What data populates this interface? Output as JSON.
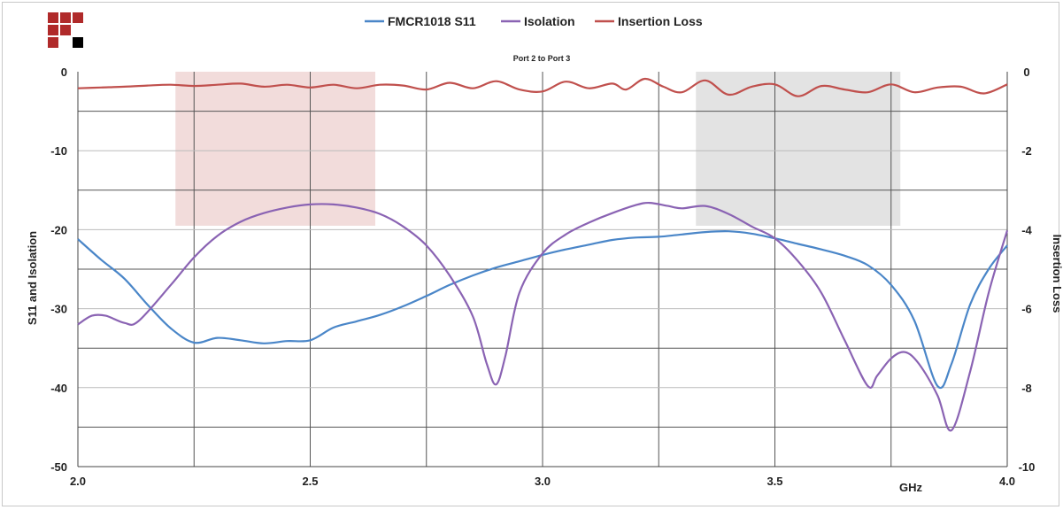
{
  "chart_data": {
    "type": "line",
    "title": "Port 2 to Port 3",
    "xlabel": "GHz",
    "ylabel": "S11 and Isolation",
    "y2label": "Insertion Loss",
    "xlim": [
      2.0,
      4.0
    ],
    "ylim": [
      -50,
      0
    ],
    "y2lim": [
      -10,
      0
    ],
    "x_ticks": [
      "2.0",
      "2.5",
      "3.0",
      "3.5",
      "4.0"
    ],
    "y_ticks": [
      "0",
      "-10",
      "-20",
      "-30",
      "-40",
      "-50"
    ],
    "y2_ticks": [
      "0",
      "-2",
      "-4",
      "-6",
      "-8",
      "-10"
    ],
    "grid": true,
    "legend_position": "top",
    "shaded_bands": [
      {
        "x_start": 2.21,
        "x_end": 2.64,
        "y_start": -19.5,
        "y_end": 0,
        "color": "#f2dcdb"
      },
      {
        "x_start": 3.33,
        "x_end": 3.77,
        "y_start": -19.5,
        "y_end": 0,
        "color": "#e3e3e3"
      }
    ],
    "series": [
      {
        "name": "FMCR1018 S11",
        "axis": "left",
        "color": "#4a86c8",
        "points": [
          [
            2.0,
            -21.2
          ],
          [
            2.05,
            -23.8
          ],
          [
            2.1,
            -26.2
          ],
          [
            2.15,
            -29.5
          ],
          [
            2.2,
            -32.5
          ],
          [
            2.25,
            -34.3
          ],
          [
            2.3,
            -33.7
          ],
          [
            2.35,
            -34.0
          ],
          [
            2.4,
            -34.4
          ],
          [
            2.45,
            -34.1
          ],
          [
            2.5,
            -34.0
          ],
          [
            2.55,
            -32.4
          ],
          [
            2.6,
            -31.6
          ],
          [
            2.65,
            -30.8
          ],
          [
            2.7,
            -29.7
          ],
          [
            2.75,
            -28.4
          ],
          [
            2.8,
            -27.0
          ],
          [
            2.85,
            -25.8
          ],
          [
            2.9,
            -24.8
          ],
          [
            2.95,
            -24.0
          ],
          [
            3.0,
            -23.2
          ],
          [
            3.05,
            -22.5
          ],
          [
            3.1,
            -21.9
          ],
          [
            3.15,
            -21.3
          ],
          [
            3.2,
            -21.0
          ],
          [
            3.25,
            -20.9
          ],
          [
            3.3,
            -20.6
          ],
          [
            3.35,
            -20.3
          ],
          [
            3.4,
            -20.2
          ],
          [
            3.45,
            -20.5
          ],
          [
            3.5,
            -21.1
          ],
          [
            3.55,
            -21.8
          ],
          [
            3.6,
            -22.5
          ],
          [
            3.65,
            -23.3
          ],
          [
            3.7,
            -24.5
          ],
          [
            3.75,
            -27.0
          ],
          [
            3.8,
            -31.5
          ],
          [
            3.85,
            -39.8
          ],
          [
            3.88,
            -37.0
          ],
          [
            3.92,
            -29.5
          ],
          [
            3.96,
            -25.0
          ],
          [
            4.0,
            -22.0
          ]
        ]
      },
      {
        "name": "Isolation",
        "axis": "left",
        "color": "#8a63b3",
        "points": [
          [
            2.0,
            -32.0
          ],
          [
            2.03,
            -30.9
          ],
          [
            2.06,
            -30.9
          ],
          [
            2.1,
            -31.8
          ],
          [
            2.13,
            -31.6
          ],
          [
            2.2,
            -27.0
          ],
          [
            2.25,
            -23.5
          ],
          [
            2.3,
            -20.8
          ],
          [
            2.35,
            -19.0
          ],
          [
            2.4,
            -17.9
          ],
          [
            2.45,
            -17.2
          ],
          [
            2.5,
            -16.8
          ],
          [
            2.55,
            -16.8
          ],
          [
            2.6,
            -17.2
          ],
          [
            2.65,
            -18.0
          ],
          [
            2.7,
            -19.6
          ],
          [
            2.75,
            -22.0
          ],
          [
            2.8,
            -25.8
          ],
          [
            2.85,
            -31.0
          ],
          [
            2.88,
            -37.0
          ],
          [
            2.9,
            -39.6
          ],
          [
            2.92,
            -36.0
          ],
          [
            2.95,
            -28.0
          ],
          [
            3.0,
            -23.0
          ],
          [
            3.05,
            -20.6
          ],
          [
            3.1,
            -19.1
          ],
          [
            3.15,
            -17.9
          ],
          [
            3.2,
            -16.9
          ],
          [
            3.23,
            -16.6
          ],
          [
            3.27,
            -17.0
          ],
          [
            3.3,
            -17.3
          ],
          [
            3.35,
            -17.0
          ],
          [
            3.4,
            -18.0
          ],
          [
            3.45,
            -19.6
          ],
          [
            3.5,
            -21.1
          ],
          [
            3.55,
            -24.0
          ],
          [
            3.6,
            -28.0
          ],
          [
            3.65,
            -34.0
          ],
          [
            3.7,
            -39.8
          ],
          [
            3.72,
            -38.5
          ],
          [
            3.75,
            -36.3
          ],
          [
            3.78,
            -35.5
          ],
          [
            3.81,
            -37.0
          ],
          [
            3.85,
            -41.0
          ],
          [
            3.88,
            -45.4
          ],
          [
            3.92,
            -38.0
          ],
          [
            3.96,
            -28.0
          ],
          [
            4.0,
            -20.1
          ]
        ]
      },
      {
        "name": "Insertion Loss",
        "axis": "right",
        "color": "#c0504d",
        "points": [
          [
            2.0,
            -0.42
          ],
          [
            2.05,
            -0.4
          ],
          [
            2.1,
            -0.38
          ],
          [
            2.15,
            -0.35
          ],
          [
            2.2,
            -0.33
          ],
          [
            2.25,
            -0.36
          ],
          [
            2.3,
            -0.33
          ],
          [
            2.35,
            -0.3
          ],
          [
            2.4,
            -0.38
          ],
          [
            2.45,
            -0.33
          ],
          [
            2.5,
            -0.4
          ],
          [
            2.55,
            -0.33
          ],
          [
            2.6,
            -0.42
          ],
          [
            2.65,
            -0.33
          ],
          [
            2.7,
            -0.35
          ],
          [
            2.75,
            -0.45
          ],
          [
            2.8,
            -0.28
          ],
          [
            2.85,
            -0.42
          ],
          [
            2.9,
            -0.24
          ],
          [
            2.95,
            -0.45
          ],
          [
            3.0,
            -0.5
          ],
          [
            3.05,
            -0.25
          ],
          [
            3.1,
            -0.42
          ],
          [
            3.15,
            -0.3
          ],
          [
            3.18,
            -0.45
          ],
          [
            3.22,
            -0.18
          ],
          [
            3.26,
            -0.38
          ],
          [
            3.3,
            -0.52
          ],
          [
            3.35,
            -0.22
          ],
          [
            3.4,
            -0.58
          ],
          [
            3.45,
            -0.38
          ],
          [
            3.5,
            -0.32
          ],
          [
            3.55,
            -0.62
          ],
          [
            3.6,
            -0.36
          ],
          [
            3.65,
            -0.45
          ],
          [
            3.7,
            -0.52
          ],
          [
            3.75,
            -0.32
          ],
          [
            3.8,
            -0.52
          ],
          [
            3.85,
            -0.4
          ],
          [
            3.9,
            -0.38
          ],
          [
            3.95,
            -0.55
          ],
          [
            4.0,
            -0.32
          ]
        ]
      }
    ]
  },
  "logo": {
    "cells": [
      "#b02a2a",
      "#b02a2a",
      "#b02a2a",
      "#b02a2a",
      "#b02a2a",
      "#ffffff",
      "#b02a2a",
      "#ffffff",
      "#000000"
    ]
  }
}
